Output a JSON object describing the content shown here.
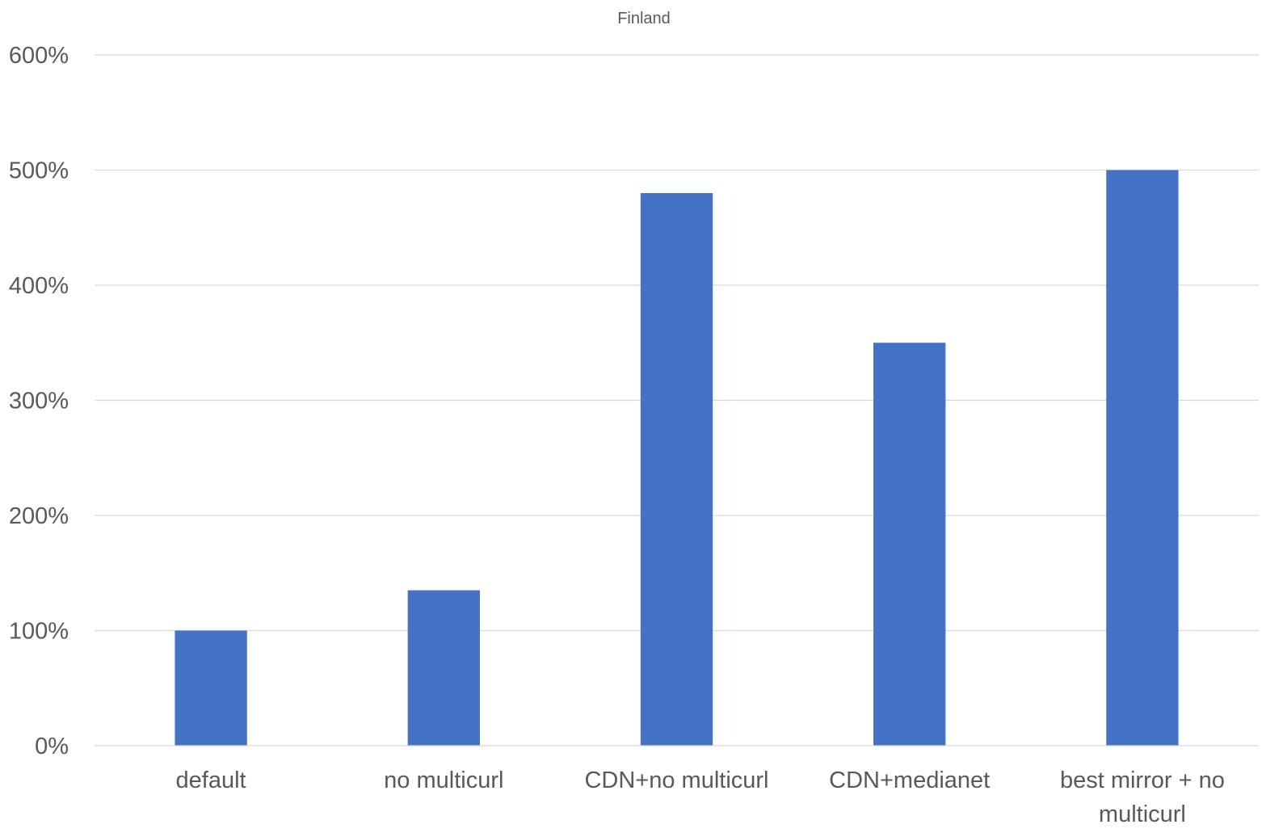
{
  "chart_data": {
    "type": "bar",
    "title": "Finland",
    "categories": [
      [
        "default"
      ],
      [
        "no multicurl"
      ],
      [
        "CDN+no multicurl"
      ],
      [
        "CDN+medianet"
      ],
      [
        "best mirror + no",
        "multicurl"
      ]
    ],
    "values": [
      100,
      135,
      480,
      350,
      500
    ],
    "ylim": [
      0,
      600
    ],
    "yticks": [
      0,
      100,
      200,
      300,
      400,
      500,
      600
    ],
    "ytick_labels": [
      "0%",
      "100%",
      "200%",
      "300%",
      "400%",
      "500%",
      "600%"
    ],
    "grid": true,
    "legend": "none",
    "bar_color": "#4472C4"
  }
}
